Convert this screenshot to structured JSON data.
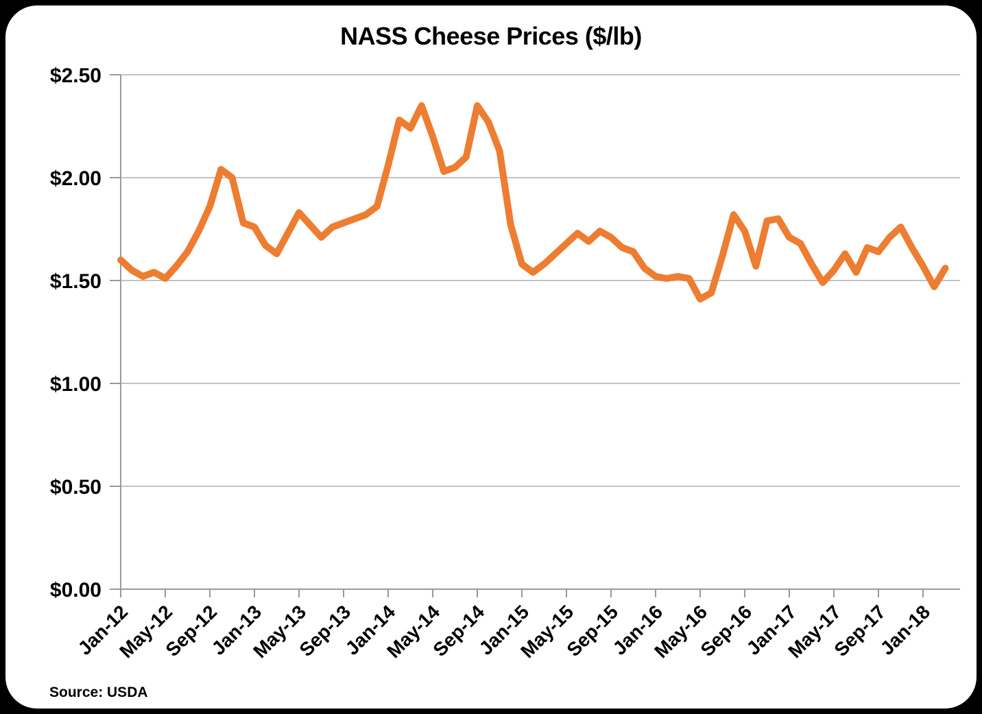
{
  "chart": {
    "title": "NASS Cheese Prices ($/lb)",
    "source": "Source: USDA",
    "accent_color": "#ED7D31"
  },
  "chart_data": {
    "type": "line",
    "title": "NASS Cheese Prices ($/lb)",
    "source": "Source: USDA",
    "xlabel": "",
    "ylabel": "",
    "ylim": [
      0,
      2.5
    ],
    "y_tick_step": 0.5,
    "y_tick_labels": [
      "$0.00",
      "$0.50",
      "$1.00",
      "$1.50",
      "$2.00",
      "$2.50"
    ],
    "x_tick_every": 4,
    "x_tick_labels": [
      "Jan-12",
      "May-12",
      "Sep-12",
      "Jan-13",
      "May-13",
      "Sep-13",
      "Jan-14",
      "May-14",
      "Sep-14",
      "Jan-15",
      "May-15",
      "Sep-15",
      "Jan-16",
      "May-16",
      "Sep-16",
      "Jan-17",
      "May-17",
      "Sep-17",
      "Jan-18"
    ],
    "grid": "horizontal",
    "legend": "none",
    "months": [
      "Jan-12",
      "Feb-12",
      "Mar-12",
      "Apr-12",
      "May-12",
      "Jun-12",
      "Jul-12",
      "Aug-12",
      "Sep-12",
      "Oct-12",
      "Nov-12",
      "Dec-12",
      "Jan-13",
      "Feb-13",
      "Mar-13",
      "Apr-13",
      "May-13",
      "Jun-13",
      "Jul-13",
      "Aug-13",
      "Sep-13",
      "Oct-13",
      "Nov-13",
      "Dec-13",
      "Jan-14",
      "Feb-14",
      "Mar-14",
      "Apr-14",
      "May-14",
      "Jun-14",
      "Jul-14",
      "Aug-14",
      "Sep-14",
      "Oct-14",
      "Nov-14",
      "Dec-14",
      "Jan-15",
      "Feb-15",
      "Mar-15",
      "Apr-15",
      "May-15",
      "Jun-15",
      "Jul-15",
      "Aug-15",
      "Sep-15",
      "Oct-15",
      "Nov-15",
      "Dec-15",
      "Jan-16",
      "Feb-16",
      "Mar-16",
      "Apr-16",
      "May-16",
      "Jun-16",
      "Jul-16",
      "Aug-16",
      "Sep-16",
      "Oct-16",
      "Nov-16",
      "Dec-16",
      "Jan-17",
      "Feb-17",
      "Mar-17",
      "Apr-17",
      "May-17",
      "Jun-17",
      "Jul-17",
      "Aug-17",
      "Sep-17",
      "Oct-17",
      "Nov-17",
      "Dec-17",
      "Jan-18",
      "Feb-18",
      "Mar-18"
    ],
    "series": [
      {
        "name": "NASS Cheese Prices ($/lb)",
        "color": "#ED7D31",
        "values": [
          1.6,
          1.55,
          1.52,
          1.54,
          1.51,
          1.57,
          1.64,
          1.74,
          1.86,
          2.04,
          2.0,
          1.78,
          1.76,
          1.67,
          1.63,
          1.73,
          1.83,
          1.77,
          1.71,
          1.76,
          1.78,
          1.8,
          1.82,
          1.86,
          2.06,
          2.28,
          2.24,
          2.35,
          2.2,
          2.03,
          2.05,
          2.1,
          2.35,
          2.27,
          2.13,
          1.77,
          1.58,
          1.54,
          1.58,
          1.63,
          1.68,
          1.73,
          1.69,
          1.74,
          1.71,
          1.66,
          1.64,
          1.56,
          1.52,
          1.51,
          1.52,
          1.51,
          1.41,
          1.44,
          1.62,
          1.82,
          1.74,
          1.57,
          1.79,
          1.8,
          1.71,
          1.68,
          1.58,
          1.49,
          1.55,
          1.63,
          1.54,
          1.66,
          1.64,
          1.71,
          1.76,
          1.66,
          1.57,
          1.47,
          1.56
        ]
      }
    ]
  }
}
